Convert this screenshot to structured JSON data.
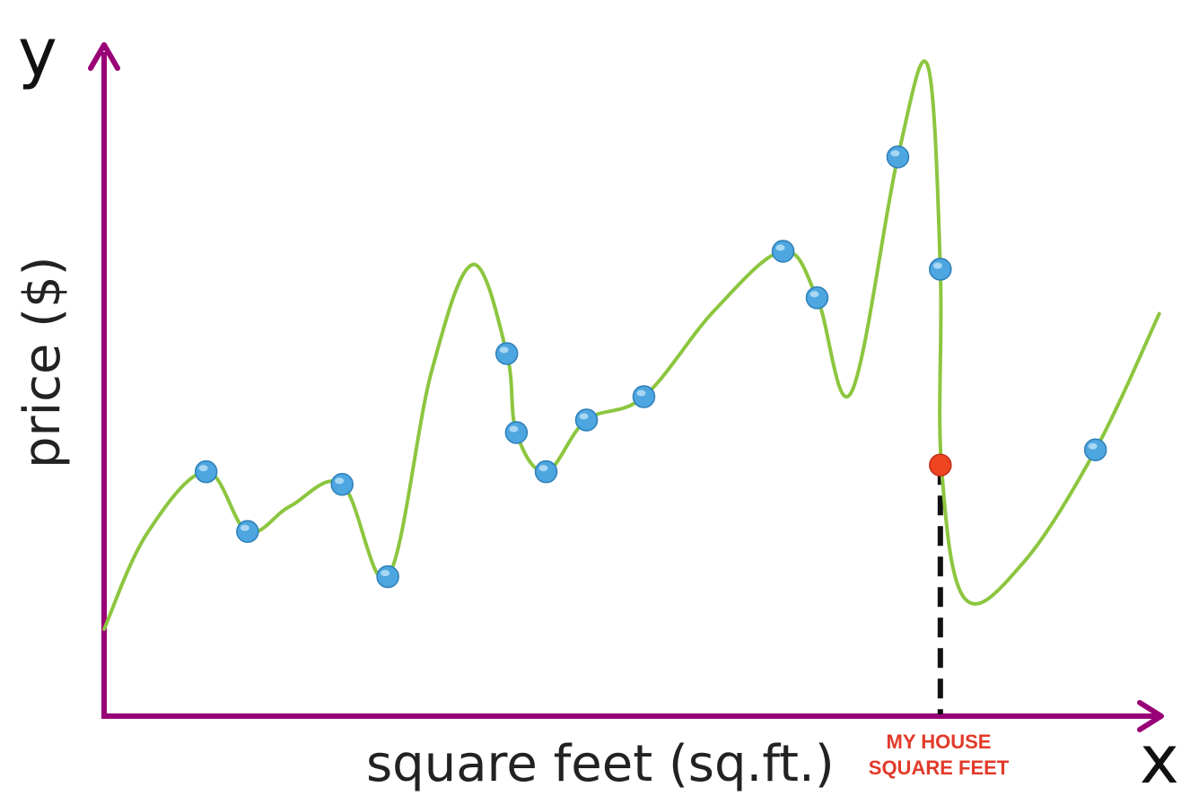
{
  "chart_data": {
    "type": "scatter",
    "title": "",
    "x_axis_letter": "x",
    "y_axis_letter": "y",
    "xlabel": "square feet (sq.ft.)",
    "ylabel": "price ($)",
    "xlim": [
      0,
      100
    ],
    "ylim": [
      0,
      100
    ],
    "grid": false,
    "series": [
      {
        "kind": "points",
        "color": "#4da6e0",
        "points": [
          {
            "x": 9.6,
            "y": 36.8
          },
          {
            "x": 13.5,
            "y": 27.8
          },
          {
            "x": 22.4,
            "y": 34.9
          },
          {
            "x": 26.7,
            "y": 21.0
          },
          {
            "x": 37.9,
            "y": 54.6
          },
          {
            "x": 38.8,
            "y": 42.7
          },
          {
            "x": 41.6,
            "y": 36.8
          },
          {
            "x": 45.4,
            "y": 44.6
          },
          {
            "x": 50.8,
            "y": 48.1
          },
          {
            "x": 63.9,
            "y": 70.0
          },
          {
            "x": 67.1,
            "y": 63.0
          },
          {
            "x": 74.7,
            "y": 84.2
          },
          {
            "x": 78.7,
            "y": 67.3
          },
          {
            "x": 93.3,
            "y": 40.1
          }
        ]
      },
      {
        "kind": "curve",
        "color": "#8cc63f",
        "points": [
          {
            "x": 0.0,
            "y": 13.1
          },
          {
            "x": 4.0,
            "y": 27.4
          },
          {
            "x": 9.6,
            "y": 36.8
          },
          {
            "x": 13.5,
            "y": 27.8
          },
          {
            "x": 17.5,
            "y": 31.6
          },
          {
            "x": 22.4,
            "y": 34.9
          },
          {
            "x": 26.7,
            "y": 21.0
          },
          {
            "x": 30.8,
            "y": 51.8
          },
          {
            "x": 34.7,
            "y": 68.0
          },
          {
            "x": 37.9,
            "y": 54.6
          },
          {
            "x": 38.8,
            "y": 42.7
          },
          {
            "x": 41.6,
            "y": 36.8
          },
          {
            "x": 45.4,
            "y": 44.6
          },
          {
            "x": 50.8,
            "y": 48.1
          },
          {
            "x": 57.5,
            "y": 61.2
          },
          {
            "x": 63.9,
            "y": 70.0
          },
          {
            "x": 67.1,
            "y": 63.0
          },
          {
            "x": 70.3,
            "y": 48.7
          },
          {
            "x": 74.7,
            "y": 84.2
          },
          {
            "x": 77.5,
            "y": 98.0
          },
          {
            "x": 78.7,
            "y": 67.3
          },
          {
            "x": 78.8,
            "y": 37.8
          },
          {
            "x": 81.0,
            "y": 17.7
          },
          {
            "x": 86.5,
            "y": 23.1
          },
          {
            "x": 93.3,
            "y": 40.1
          },
          {
            "x": 99.3,
            "y": 60.6
          }
        ]
      },
      {
        "kind": "highlight",
        "color": "#ee4422",
        "points": [
          {
            "x": 78.7,
            "y": 37.8
          }
        ]
      }
    ],
    "annotation": {
      "lines": [
        "MY HOUSE",
        "SQUARE FEET"
      ],
      "x": 78.7,
      "color": "#e23a2a"
    },
    "axis_color": "#990077"
  }
}
